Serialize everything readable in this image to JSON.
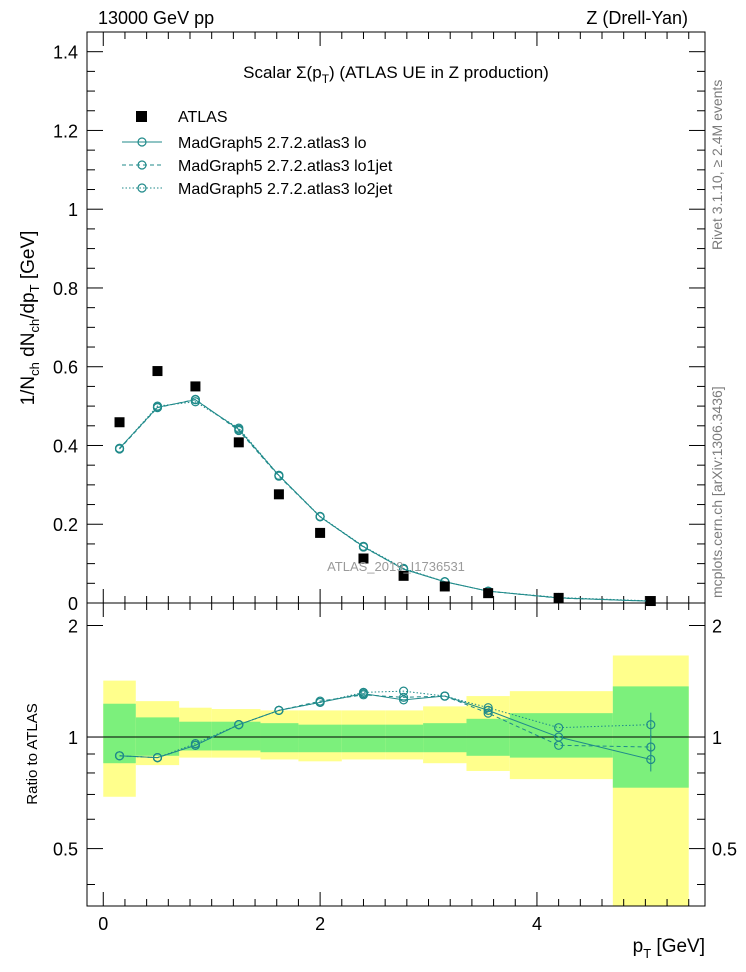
{
  "header": {
    "left": "13000 GeV pp",
    "right": "Z (Drell-Yan)"
  },
  "side": {
    "rivet": "Rivet 3.1.10, ≥ 2.4M events",
    "mcplots": "mcplots.cern.ch [arXiv:1306.3436]"
  },
  "colors": {
    "mc": "#1f8a8a",
    "band_inner": "#7cf07c",
    "band_outer": "#ffff8c",
    "data": "#000000"
  },
  "chart_data": {
    "type": "scatter",
    "title": "Scalar Σ(p_T) (ATLAS UE in Z production)",
    "watermark": "ATLAS_2019_I1736531",
    "xlabel": "p_T [GeV]",
    "ylabel": "1/N_ch dN_ch/dp_T [GeV]",
    "ratio_ylabel": "Ratio to ATLAS",
    "xlim": [
      -0.15,
      5.55
    ],
    "ylim": [
      0,
      1.45
    ],
    "ratio_ylim": [
      0.35,
      2.3
    ],
    "ratio_log": true,
    "x_ticks": [
      "0",
      "2",
      "4"
    ],
    "y_ticks": [
      "0",
      "0.2",
      "0.4",
      "0.6",
      "0.8",
      "1",
      "1.2",
      "1.4"
    ],
    "ratio_ticks": [
      "0.5",
      "1",
      "2"
    ],
    "legend_position": "top-left",
    "bin_edges": [
      0.0,
      0.3,
      0.7,
      1.0,
      1.45,
      1.8,
      2.2,
      2.6,
      2.95,
      3.35,
      3.75,
      4.7,
      5.4
    ],
    "band_outer": [
      [
        0.69,
        1.42
      ],
      [
        0.84,
        1.25
      ],
      [
        0.88,
        1.2
      ],
      [
        0.88,
        1.19
      ],
      [
        0.87,
        1.18
      ],
      [
        0.86,
        1.18
      ],
      [
        0.87,
        1.18
      ],
      [
        0.87,
        1.18
      ],
      [
        0.85,
        1.21
      ],
      [
        0.81,
        1.29
      ],
      [
        0.77,
        1.33
      ],
      [
        0.35,
        1.66
      ]
    ],
    "band_inner": [
      [
        0.85,
        1.23
      ],
      [
        0.89,
        1.13
      ],
      [
        0.92,
        1.1
      ],
      [
        0.92,
        1.1
      ],
      [
        0.91,
        1.09
      ],
      [
        0.91,
        1.08
      ],
      [
        0.91,
        1.08
      ],
      [
        0.91,
        1.08
      ],
      [
        0.91,
        1.09
      ],
      [
        0.89,
        1.12
      ],
      [
        0.88,
        1.16
      ],
      [
        0.73,
        1.37
      ]
    ],
    "atlas": {
      "name": "ATLAS",
      "x": [
        0.15,
        0.5,
        0.85,
        1.25,
        1.62,
        2.0,
        2.4,
        2.77,
        3.15,
        3.55,
        4.2,
        5.05
      ],
      "y": [
        0.459,
        0.589,
        0.55,
        0.408,
        0.276,
        0.178,
        0.113,
        0.069,
        0.042,
        0.025,
        0.013,
        0.005
      ]
    },
    "series": [
      {
        "name": "MadGraph5 2.7.2.atlas3 lo",
        "x": [
          0.15,
          0.5,
          0.85,
          1.25,
          1.62,
          2.0,
          2.4,
          2.77,
          3.15,
          3.55,
          4.2,
          5.05
        ],
        "y": [
          0.393,
          0.497,
          0.516,
          0.441,
          0.324,
          0.219,
          0.143,
          0.086,
          0.054,
          0.03,
          0.013,
          0.0044
        ],
        "ratio": [
          0.89,
          0.88,
          0.95,
          1.08,
          1.18,
          1.24,
          1.31,
          1.26,
          1.29,
          1.18,
          1.0,
          0.87
        ],
        "style": "solid"
      },
      {
        "name": "MadGraph5 2.7.2.atlas3 lo1jet",
        "x": [
          0.15,
          0.5,
          0.85,
          1.25,
          1.62,
          2.0,
          2.4,
          2.77,
          3.15,
          3.55,
          4.2,
          5.05
        ],
        "y": [
          0.391,
          0.496,
          0.517,
          0.438,
          0.322,
          0.219,
          0.142,
          0.086,
          0.054,
          0.03,
          0.0125,
          0.0047
        ],
        "ratio": [
          0.89,
          0.88,
          0.95,
          1.08,
          1.18,
          1.25,
          1.3,
          1.28,
          1.29,
          1.16,
          0.95,
          0.94
        ],
        "style": "dashed"
      },
      {
        "name": "MadGraph5 2.7.2.atlas3 lo2jet",
        "x": [
          0.15,
          0.5,
          0.85,
          1.25,
          1.62,
          2.0,
          2.4,
          2.77,
          3.15,
          3.55,
          4.2,
          5.05
        ],
        "y": [
          0.392,
          0.5,
          0.511,
          0.444,
          0.324,
          0.22,
          0.144,
          0.088,
          0.054,
          0.03,
          0.014,
          0.0054
        ],
        "ratio": [
          0.89,
          0.88,
          0.96,
          1.08,
          1.18,
          1.24,
          1.32,
          1.33,
          1.29,
          1.2,
          1.06,
          1.08
        ],
        "style": "dotted"
      }
    ]
  }
}
